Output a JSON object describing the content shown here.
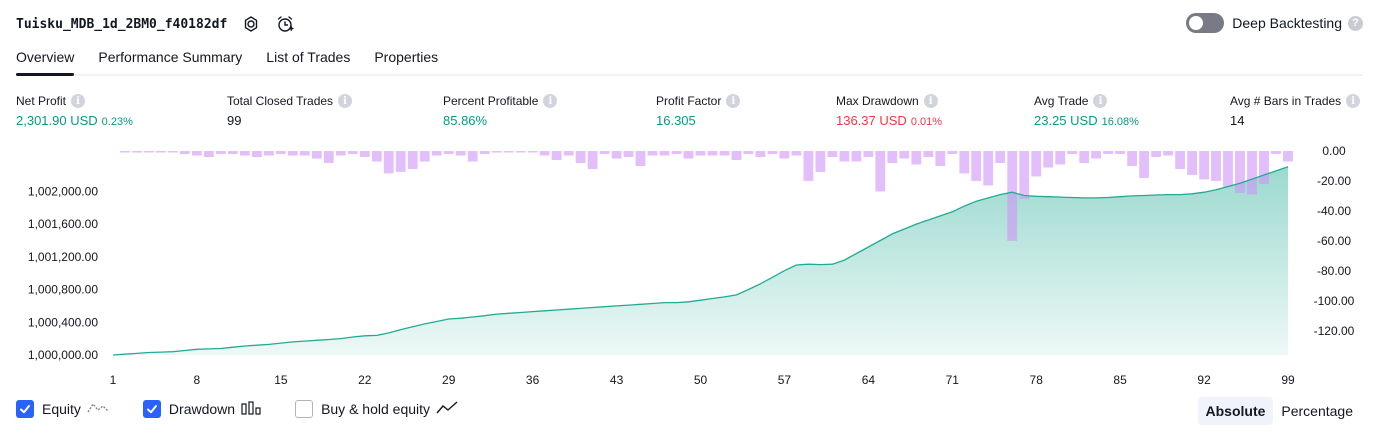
{
  "header": {
    "strategy_name": "Tuisku_MDB_1d_2BM0_f40182df",
    "deep_backtesting_label": "Deep Backtesting",
    "deep_backtesting_enabled": false,
    "help_glyph": "?"
  },
  "tabs": [
    {
      "label": "Overview",
      "active": true
    },
    {
      "label": "Performance Summary",
      "active": false
    },
    {
      "label": "List of Trades",
      "active": false
    },
    {
      "label": "Properties",
      "active": false
    }
  ],
  "stats": {
    "net_profit": {
      "label": "Net Profit",
      "value": "2,301.90 USD",
      "pct": "0.23%"
    },
    "total_closed_trades": {
      "label": "Total Closed Trades",
      "value": "99"
    },
    "percent_profitable": {
      "label": "Percent Profitable",
      "value": "85.86%"
    },
    "profit_factor": {
      "label": "Profit Factor",
      "value": "16.305"
    },
    "max_drawdown": {
      "label": "Max Drawdown",
      "value": "136.37 USD",
      "pct": "0.01%"
    },
    "avg_trade": {
      "label": "Avg Trade",
      "value": "23.25 USD",
      "pct": "16.08%"
    },
    "avg_bars": {
      "label": "Avg # Bars in Trades",
      "value": "14"
    },
    "info_glyph": "i"
  },
  "chart_data": {
    "type": "area",
    "x": [
      1,
      2,
      3,
      4,
      5,
      6,
      7,
      8,
      9,
      10,
      11,
      12,
      13,
      14,
      15,
      16,
      17,
      18,
      19,
      20,
      21,
      22,
      23,
      24,
      25,
      26,
      27,
      28,
      29,
      30,
      31,
      32,
      33,
      34,
      35,
      36,
      37,
      38,
      39,
      40,
      41,
      42,
      43,
      44,
      45,
      46,
      47,
      48,
      49,
      50,
      51,
      52,
      53,
      54,
      55,
      56,
      57,
      58,
      59,
      60,
      61,
      62,
      63,
      64,
      65,
      66,
      67,
      68,
      69,
      70,
      71,
      72,
      73,
      74,
      75,
      76,
      77,
      78,
      79,
      80,
      81,
      82,
      83,
      84,
      85,
      86,
      87,
      88,
      89,
      90,
      91,
      92,
      93,
      94,
      95,
      96,
      97,
      98,
      99
    ],
    "x_ticks": [
      "1",
      "8",
      "15",
      "22",
      "29",
      "36",
      "43",
      "50",
      "57",
      "64",
      "71",
      "78",
      "85",
      "92",
      "99"
    ],
    "series": [
      {
        "type": "area",
        "axis": "left",
        "color": "#22ab94",
        "values": [
          1000000,
          1000010,
          1000020,
          1000030,
          1000035,
          1000040,
          1000055,
          1000070,
          1000075,
          1000080,
          1000095,
          1000110,
          1000120,
          1000130,
          1000145,
          1000160,
          1000170,
          1000180,
          1000190,
          1000200,
          1000220,
          1000235,
          1000240,
          1000270,
          1000310,
          1000345,
          1000380,
          1000410,
          1000440,
          1000450,
          1000465,
          1000480,
          1000500,
          1000510,
          1000520,
          1000530,
          1000540,
          1000550,
          1000560,
          1000570,
          1000580,
          1000590,
          1000600,
          1000610,
          1000620,
          1000630,
          1000640,
          1000640,
          1000650,
          1000670,
          1000690,
          1000710,
          1000735,
          1000800,
          1000870,
          1000950,
          1001030,
          1001100,
          1001110,
          1001105,
          1001110,
          1001160,
          1001240,
          1001320,
          1001400,
          1001480,
          1001540,
          1001600,
          1001650,
          1001700,
          1001750,
          1001820,
          1001880,
          1001920,
          1001960,
          1001990,
          1001950,
          1001940,
          1001935,
          1001930,
          1001925,
          1001920,
          1001920,
          1001925,
          1001935,
          1001945,
          1001950,
          1001955,
          1001960,
          1001960,
          1001970,
          1001990,
          1002020,
          1002060,
          1002100,
          1002150,
          1002200,
          1002250,
          1002300
        ]
      },
      {
        "type": "bar",
        "axis": "right",
        "color": "#ce93f7",
        "values": [
          0,
          -1,
          -1,
          -1,
          -1,
          -1,
          -2,
          -3,
          -4,
          -2,
          -2,
          -3,
          -4,
          -3,
          -2,
          -3,
          -3,
          -5,
          -8,
          -3,
          -2,
          -4,
          -7,
          -15,
          -14,
          -12,
          -7,
          -3,
          -2,
          -3,
          -7,
          -2,
          -1,
          -1,
          -1,
          -1,
          -3,
          -6,
          -3,
          -8,
          -12,
          -2,
          -5,
          -4,
          -10,
          -3,
          -3,
          -2,
          -5,
          -3,
          -3,
          -3,
          -6,
          -2,
          -4,
          -2,
          -5,
          -3,
          -20,
          -14,
          -4,
          -7,
          -7,
          -4,
          -27,
          -8,
          -5,
          -9,
          -4,
          -10,
          -2,
          -15,
          -20,
          -23,
          -8,
          -60,
          -32,
          -17,
          -11,
          -9,
          -2,
          -8,
          -5,
          -2,
          -2,
          -10,
          -18,
          -4,
          -3,
          -12,
          -16,
          -19,
          -20,
          -24,
          -28,
          -29,
          -22,
          -2,
          -7
        ]
      }
    ],
    "y_left": {
      "min": 1000000,
      "max": 1002200,
      "ticks": [
        "1,000,000.00",
        "1,000,400.00",
        "1,000,800.00",
        "1,001,200.00",
        "1,001,600.00",
        "1,002,000.00"
      ]
    },
    "y_right": {
      "min": -136.37,
      "max": 0,
      "ticks": [
        "0.00",
        "-20.00",
        "-40.00",
        "-60.00",
        "-80.00",
        "-100.00",
        "-120.00"
      ]
    }
  },
  "footer": {
    "equity": {
      "label": "Equity",
      "checked": true
    },
    "drawdown": {
      "label": "Drawdown",
      "checked": true
    },
    "buy_hold": {
      "label": "Buy & hold equity",
      "checked": false
    },
    "absolute_label": "Absolute",
    "percentage_label": "Percentage",
    "selected": "Absolute"
  }
}
